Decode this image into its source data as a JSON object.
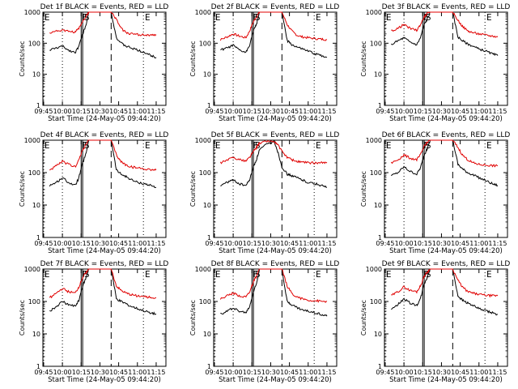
{
  "figure": {
    "xlabel": "Start Time (24-May-05 09:44:20)",
    "ylabel": "Counts/sec",
    "x_ticks": [
      "09:45",
      "10:00",
      "10:15",
      "10:30",
      "10:45",
      "11:00",
      "11:15"
    ],
    "y_ticks": [
      "1",
      "10",
      "100",
      "1000"
    ],
    "colors": {
      "events": "#000000",
      "lld": "#e00000",
      "frame": "#000000"
    }
  },
  "chart_data": [
    {
      "type": "line",
      "title": "Det 1f BLACK = Events, RED = LLD",
      "markers": [
        "E",
        "F",
        "S",
        "E"
      ],
      "ylim": [
        1,
        1000
      ],
      "x_ticks": [
        "09:45",
        "10:00",
        "10:15",
        "10:30",
        "10:45",
        "11:00",
        "11:15"
      ],
      "x": [
        9.83,
        9.92,
        10.0,
        10.08,
        10.17,
        10.22,
        10.27,
        10.31,
        10.35,
        10.45,
        10.55,
        10.6,
        10.65,
        10.72,
        10.78,
        10.85,
        10.92,
        11.0,
        11.1,
        11.18,
        11.25
      ],
      "series": [
        {
          "values": [
            60,
            70,
            80,
            60,
            50,
            80,
            200,
            350,
            1000,
            1000,
            1000,
            1000,
            1000,
            150,
            100,
            80,
            70,
            60,
            50,
            40,
            35
          ]
        },
        {
          "values": [
            220,
            250,
            260,
            240,
            230,
            300,
            500,
            700,
            1000,
            1000,
            1000,
            1000,
            1000,
            600,
            300,
            220,
            200,
            190,
            185,
            180,
            180
          ]
        }
      ]
    },
    {
      "type": "line",
      "title": "Det 2f BLACK = Events, RED = LLD",
      "markers": [
        "E",
        "F",
        "S",
        "E"
      ],
      "ylim": [
        1,
        1000
      ],
      "x_ticks": [
        "09:45",
        "10:00",
        "10:15",
        "10:30",
        "10:45",
        "11:00",
        "11:15"
      ],
      "x": [
        9.83,
        9.92,
        10.0,
        10.08,
        10.17,
        10.22,
        10.27,
        10.31,
        10.35,
        10.45,
        10.55,
        10.6,
        10.65,
        10.72,
        10.78,
        10.85,
        10.92,
        11.0,
        11.1,
        11.18,
        11.25
      ],
      "series": [
        {
          "values": [
            60,
            70,
            85,
            60,
            50,
            90,
            250,
            400,
            1000,
            1000,
            1000,
            1000,
            1000,
            120,
            90,
            75,
            65,
            55,
            45,
            40,
            35
          ]
        },
        {
          "values": [
            130,
            160,
            200,
            170,
            150,
            250,
            500,
            700,
            1000,
            1000,
            1000,
            1000,
            1000,
            400,
            250,
            180,
            160,
            150,
            140,
            135,
            130
          ]
        }
      ]
    },
    {
      "type": "line",
      "title": "Det 3f BLACK = Events, RED = LLD",
      "markers": [
        "E",
        "F",
        "S",
        "E"
      ],
      "ylim": [
        1,
        1000
      ],
      "x_ticks": [
        "09:45",
        "10:00",
        "10:15",
        "10:30",
        "10:45",
        "11:00",
        "11:15"
      ],
      "x": [
        9.83,
        9.92,
        10.0,
        10.08,
        10.17,
        10.22,
        10.27,
        10.31,
        10.35,
        10.45,
        10.55,
        10.6,
        10.65,
        10.72,
        10.78,
        10.85,
        10.92,
        11.0,
        11.1,
        11.18,
        11.25
      ],
      "series": [
        {
          "values": [
            90,
            120,
            150,
            110,
            90,
            150,
            400,
            600,
            1000,
            1000,
            1000,
            1000,
            1000,
            160,
            120,
            95,
            80,
            65,
            55,
            45,
            40
          ]
        },
        {
          "values": [
            250,
            300,
            400,
            300,
            260,
            400,
            700,
            900,
            1000,
            1000,
            1000,
            1000,
            1000,
            550,
            350,
            250,
            220,
            200,
            180,
            170,
            160
          ]
        }
      ]
    },
    {
      "type": "line",
      "title": "Det 4f BLACK = Events, RED = LLD",
      "markers": [
        "E",
        "F",
        "S",
        "E"
      ],
      "ylim": [
        1,
        1000
      ],
      "x_ticks": [
        "09:45",
        "10:00",
        "10:15",
        "10:30",
        "10:45",
        "11:00",
        "11:15"
      ],
      "x": [
        9.83,
        9.92,
        10.0,
        10.08,
        10.17,
        10.22,
        10.27,
        10.31,
        10.35,
        10.45,
        10.55,
        10.6,
        10.65,
        10.72,
        10.78,
        10.85,
        10.92,
        11.0,
        11.1,
        11.18,
        11.25
      ],
      "series": [
        {
          "values": [
            40,
            50,
            70,
            50,
            40,
            70,
            200,
            350,
            1000,
            1000,
            1000,
            1000,
            1000,
            120,
            90,
            75,
            60,
            50,
            45,
            40,
            35
          ]
        },
        {
          "values": [
            120,
            160,
            220,
            180,
            150,
            250,
            500,
            700,
            1000,
            1000,
            1000,
            1000,
            1000,
            350,
            220,
            170,
            150,
            140,
            130,
            125,
            120
          ]
        }
      ]
    },
    {
      "type": "line",
      "title": "Det 5f BLACK = Events, RED = LLD",
      "markers": [
        "E",
        "F",
        "S",
        "E"
      ],
      "ylim": [
        1,
        1000
      ],
      "x_ticks": [
        "09:45",
        "10:00",
        "10:15",
        "10:30",
        "10:45",
        "11:00",
        "11:15"
      ],
      "x": [
        9.83,
        9.92,
        10.0,
        10.08,
        10.17,
        10.22,
        10.27,
        10.31,
        10.35,
        10.45,
        10.55,
        10.6,
        10.65,
        10.72,
        10.78,
        10.85,
        10.92,
        11.0,
        11.1,
        11.18,
        11.25
      ],
      "series": [
        {
          "values": [
            40,
            50,
            60,
            45,
            40,
            60,
            150,
            250,
            500,
            750,
            900,
            400,
            150,
            90,
            80,
            70,
            60,
            50,
            45,
            40,
            35
          ]
        },
        {
          "values": [
            200,
            240,
            300,
            250,
            230,
            300,
            450,
            600,
            800,
            950,
            900,
            700,
            450,
            300,
            250,
            220,
            210,
            200,
            200,
            200,
            200
          ]
        }
      ]
    },
    {
      "type": "line",
      "title": "Det 6f BLACK = Events, RED = LLD",
      "markers": [
        "E",
        "F",
        "S",
        "E"
      ],
      "ylim": [
        1,
        1000
      ],
      "x_ticks": [
        "09:45",
        "10:00",
        "10:15",
        "10:30",
        "10:45",
        "11:00",
        "11:15"
      ],
      "x": [
        9.83,
        9.92,
        10.0,
        10.08,
        10.17,
        10.22,
        10.27,
        10.31,
        10.35,
        10.45,
        10.55,
        10.6,
        10.65,
        10.72,
        10.78,
        10.85,
        10.92,
        11.0,
        11.1,
        11.18,
        11.25
      ],
      "series": [
        {
          "values": [
            80,
            100,
            150,
            110,
            90,
            140,
            350,
            550,
            1000,
            1000,
            1000,
            1000,
            1000,
            180,
            130,
            100,
            85,
            70,
            55,
            45,
            40
          ]
        },
        {
          "values": [
            200,
            250,
            350,
            280,
            250,
            350,
            650,
            850,
            1000,
            1000,
            1000,
            1000,
            1000,
            600,
            350,
            250,
            200,
            180,
            170,
            165,
            160
          ]
        }
      ]
    },
    {
      "type": "line",
      "title": "Det 7f BLACK = Events, RED = LLD",
      "markers": [
        "E",
        "F",
        "S",
        "E"
      ],
      "ylim": [
        1,
        1000
      ],
      "x_ticks": [
        "09:45",
        "10:00",
        "10:15",
        "10:30",
        "10:45",
        "11:00",
        "11:15"
      ],
      "x": [
        9.83,
        9.92,
        10.0,
        10.08,
        10.17,
        10.22,
        10.27,
        10.31,
        10.35,
        10.45,
        10.55,
        10.6,
        10.65,
        10.72,
        10.78,
        10.85,
        10.92,
        11.0,
        11.1,
        11.18,
        11.25
      ],
      "series": [
        {
          "values": [
            50,
            70,
            100,
            80,
            70,
            110,
            300,
            500,
            1000,
            1000,
            1000,
            1000,
            1000,
            120,
            100,
            85,
            70,
            60,
            50,
            45,
            40
          ]
        },
        {
          "values": [
            130,
            180,
            250,
            200,
            180,
            280,
            550,
            750,
            1000,
            1000,
            1000,
            1000,
            1000,
            300,
            220,
            180,
            160,
            150,
            140,
            135,
            130
          ]
        }
      ]
    },
    {
      "type": "line",
      "title": "Det 8f BLACK = Events, RED = LLD",
      "markers": [
        "E",
        "F",
        "S",
        "E"
      ],
      "ylim": [
        1,
        1000
      ],
      "x_ticks": [
        "09:45",
        "10:00",
        "10:15",
        "10:30",
        "10:45",
        "11:00",
        "11:15"
      ],
      "x": [
        9.83,
        9.92,
        10.0,
        10.08,
        10.17,
        10.22,
        10.27,
        10.31,
        10.35,
        10.45,
        10.55,
        10.6,
        10.65,
        10.72,
        10.78,
        10.85,
        10.92,
        11.0,
        11.1,
        11.18,
        11.25
      ],
      "series": [
        {
          "values": [
            40,
            50,
            65,
            50,
            45,
            70,
            200,
            350,
            1000,
            1000,
            1000,
            1000,
            1000,
            100,
            80,
            65,
            55,
            50,
            45,
            40,
            35
          ]
        },
        {
          "values": [
            120,
            150,
            180,
            150,
            140,
            200,
            400,
            600,
            1000,
            1000,
            1000,
            1000,
            1000,
            300,
            180,
            140,
            120,
            110,
            105,
            100,
            100
          ]
        }
      ]
    },
    {
      "type": "line",
      "title": "Det 9f BLACK = Events, RED = LLD",
      "markers": [
        "E",
        "F",
        "S",
        "E"
      ],
      "ylim": [
        1,
        1000
      ],
      "x_ticks": [
        "09:45",
        "10:00",
        "10:15",
        "10:30",
        "10:45",
        "11:00",
        "11:15"
      ],
      "x": [
        9.83,
        9.92,
        10.0,
        10.08,
        10.17,
        10.22,
        10.27,
        10.31,
        10.35,
        10.45,
        10.55,
        10.6,
        10.65,
        10.72,
        10.78,
        10.85,
        10.92,
        11.0,
        11.1,
        11.18,
        11.25
      ],
      "series": [
        {
          "values": [
            60,
            80,
            120,
            90,
            75,
            120,
            350,
            550,
            1000,
            1000,
            1000,
            1000,
            1000,
            150,
            110,
            90,
            75,
            60,
            50,
            45,
            40
          ]
        },
        {
          "values": [
            150,
            200,
            280,
            220,
            200,
            300,
            600,
            800,
            1000,
            1000,
            1000,
            1000,
            1000,
            450,
            280,
            200,
            180,
            165,
            155,
            150,
            150
          ]
        }
      ]
    }
  ]
}
